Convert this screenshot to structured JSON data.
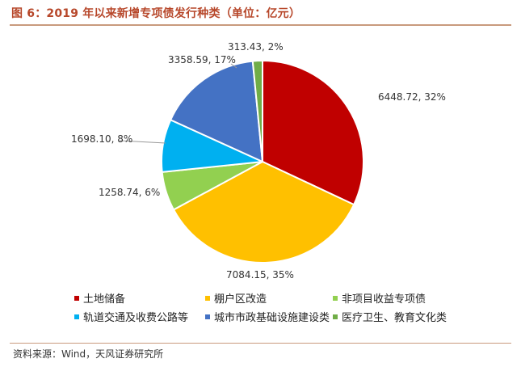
{
  "title": "图 6：2019 年以来新增专项债发行种类（单位：亿元）",
  "source": "资料来源：Wind，天风证券研究所",
  "chart_data": {
    "type": "pie",
    "title": "图 6：2019 年以来新增专项债发行种类（单位：亿元）",
    "unit": "亿元",
    "legend_position": "bottom",
    "slices": [
      {
        "name": "土地储备",
        "value": 6448.72,
        "percent": "32%",
        "label": "6448.72, 32%",
        "color": "#c00000"
      },
      {
        "name": "棚户区改造",
        "value": 7084.15,
        "percent": "35%",
        "label": "7084.15, 35%",
        "color": "#ffc000"
      },
      {
        "name": "非项目收益专项债",
        "value": 1258.74,
        "percent": "6%",
        "label": "1258.74, 6%",
        "color": "#92d050"
      },
      {
        "name": "轨道交通及收费公路等",
        "value": 1698.1,
        "percent": "8%",
        "label": "1698.10, 8%",
        "color": "#00b0f0"
      },
      {
        "name": "城市市政基础设施建设类",
        "value": 3358.59,
        "percent": "17%",
        "label": "3358.59, 17%",
        "color": "#4472c4"
      },
      {
        "name": "医疗卫生、教育文化类",
        "value": 313.43,
        "percent": "2%",
        "label": "313.43, 2%",
        "color": "#70ad47"
      }
    ]
  }
}
